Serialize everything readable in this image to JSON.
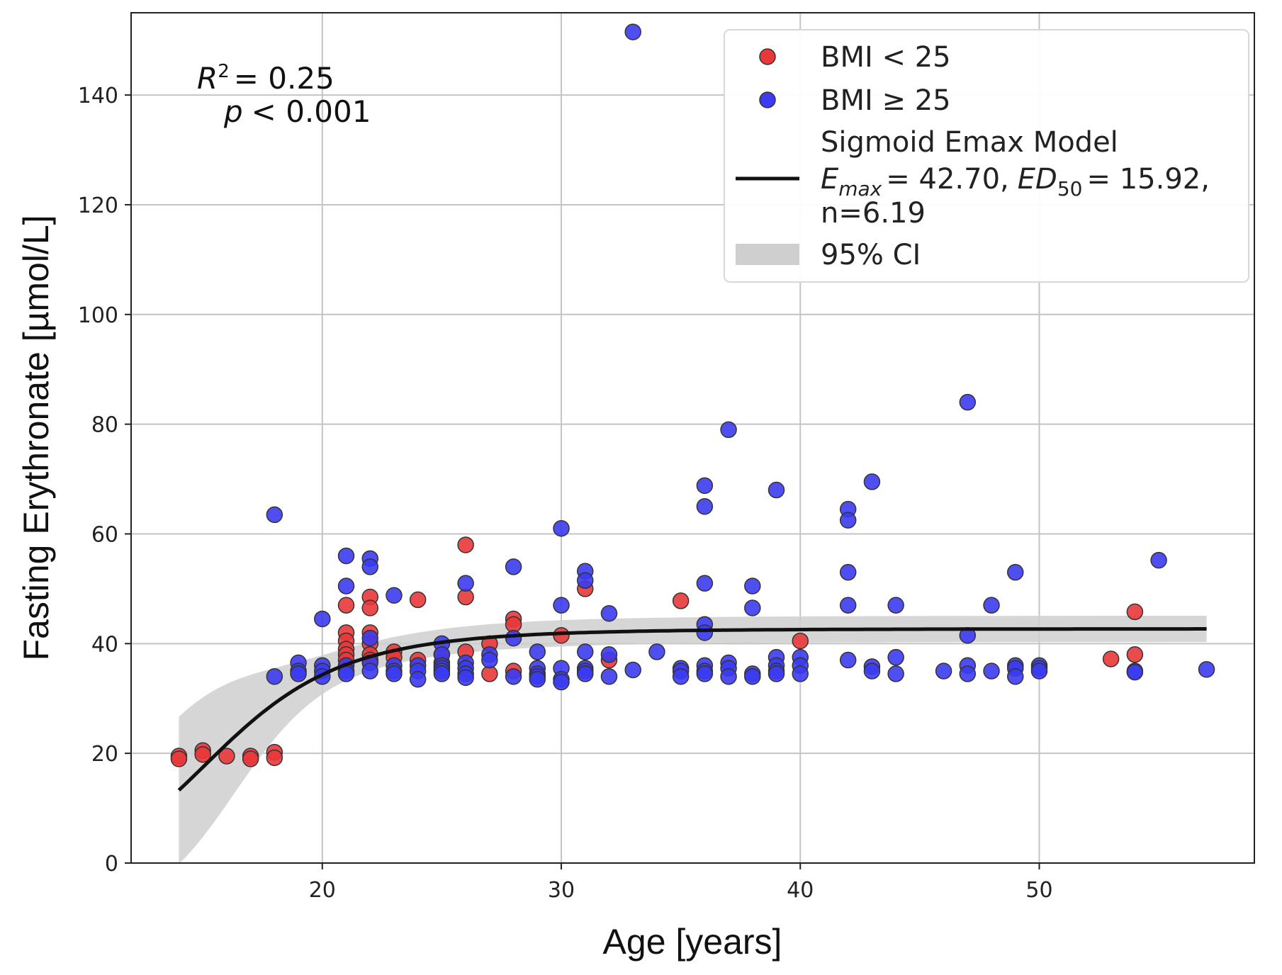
{
  "chart_data": {
    "type": "scatter",
    "xlabel": "Age [years]",
    "ylabel": "Fasting Erythronate [µmol/L]",
    "xlim": [
      12,
      59
    ],
    "ylim": [
      0,
      155
    ],
    "xticks": [
      20,
      30,
      40,
      50
    ],
    "yticks": [
      0,
      20,
      40,
      60,
      80,
      100,
      120,
      140
    ],
    "grid": true,
    "legend_position": "top-right",
    "stats": {
      "r2_symbol": "R",
      "r2_sup": "2",
      "r2_value": "= 0.25",
      "p_symbol": "p",
      "p_value": "< 0.001"
    },
    "legend": {
      "bmi_low": "BMI < 25",
      "bmi_high": "BMI ≥ 25",
      "model_title": "Sigmoid Emax Model",
      "emax_symbol": "E",
      "emax_sub": "max",
      "emax_value": "= 42.70,",
      "ed50_symbol": "ED",
      "ed50_sub": "50",
      "ed50_value": "= 15.92,",
      "n_value": "n=6.19",
      "ci": "95% CI"
    },
    "colors": {
      "bmi_low": "#e8383a",
      "bmi_high": "#3b3bf0",
      "model": "#111111",
      "ci": "#cfcfcf"
    },
    "model": {
      "emax": 42.7,
      "ed50": 15.92,
      "n": 6.19,
      "x_range": [
        14,
        57
      ]
    },
    "series": [
      {
        "name": "BMI < 25",
        "color": "#e8383a",
        "points": [
          [
            14,
            19.5
          ],
          [
            14,
            19
          ],
          [
            15,
            20.5
          ],
          [
            15,
            19.8
          ],
          [
            16,
            19.5
          ],
          [
            17,
            19.5
          ],
          [
            17,
            19
          ],
          [
            18,
            20.2
          ],
          [
            18,
            19.2
          ],
          [
            21,
            47
          ],
          [
            21,
            42
          ],
          [
            21,
            40.5
          ],
          [
            21,
            39
          ],
          [
            21,
            38
          ],
          [
            21,
            37
          ],
          [
            22,
            48.5
          ],
          [
            22,
            46.5
          ],
          [
            22,
            42
          ],
          [
            22,
            40
          ],
          [
            22,
            38
          ],
          [
            22,
            37
          ],
          [
            23,
            38.5
          ],
          [
            23,
            37.5
          ],
          [
            24,
            48
          ],
          [
            24,
            37
          ],
          [
            25,
            38
          ],
          [
            25,
            36.5
          ],
          [
            26,
            58
          ],
          [
            26,
            48.5
          ],
          [
            26,
            38.5
          ],
          [
            27,
            40
          ],
          [
            27,
            34.5
          ],
          [
            28,
            44.5
          ],
          [
            28,
            43.5
          ],
          [
            28,
            35
          ],
          [
            30,
            41.5
          ],
          [
            31,
            50
          ],
          [
            31,
            35
          ],
          [
            32,
            37
          ],
          [
            35,
            47.8
          ],
          [
            40,
            40.5
          ],
          [
            53,
            37.2
          ],
          [
            54,
            45.8
          ],
          [
            54,
            38
          ]
        ]
      },
      {
        "name": "BMI ≥ 25",
        "color": "#3b3bf0",
        "points": [
          [
            18,
            63.5
          ],
          [
            18,
            34
          ],
          [
            19,
            36.5
          ],
          [
            19,
            35
          ],
          [
            19,
            34.5
          ],
          [
            20,
            44.5
          ],
          [
            20,
            36
          ],
          [
            20,
            35
          ],
          [
            20,
            34
          ],
          [
            21,
            56
          ],
          [
            21,
            50.5
          ],
          [
            21,
            36
          ],
          [
            21,
            35
          ],
          [
            21,
            34.5
          ],
          [
            22,
            55.5
          ],
          [
            22,
            54
          ],
          [
            22,
            41
          ],
          [
            22,
            36.5
          ],
          [
            22,
            35
          ],
          [
            23,
            48.8
          ],
          [
            23,
            36
          ],
          [
            23,
            35
          ],
          [
            23,
            34.5
          ],
          [
            24,
            36
          ],
          [
            24,
            35
          ],
          [
            24,
            33.5
          ],
          [
            25,
            40
          ],
          [
            25,
            38
          ],
          [
            25,
            36
          ],
          [
            25,
            35.5
          ],
          [
            25,
            35
          ],
          [
            25,
            34.5
          ],
          [
            26,
            51
          ],
          [
            26,
            36.5
          ],
          [
            26,
            35.5
          ],
          [
            26,
            34.5
          ],
          [
            26,
            33.8
          ],
          [
            27,
            38
          ],
          [
            27,
            37
          ],
          [
            28,
            54
          ],
          [
            28,
            41
          ],
          [
            28,
            34
          ],
          [
            29,
            38.5
          ],
          [
            29,
            35.5
          ],
          [
            29,
            34.5
          ],
          [
            29,
            34
          ],
          [
            29,
            33.5
          ],
          [
            30,
            61
          ],
          [
            30,
            47
          ],
          [
            30,
            35.5
          ],
          [
            30,
            33.5
          ],
          [
            30,
            33
          ],
          [
            31,
            53.2
          ],
          [
            31,
            51.5
          ],
          [
            31,
            38.5
          ],
          [
            31,
            35.5
          ],
          [
            31,
            35
          ],
          [
            31,
            34.5
          ],
          [
            32,
            45.5
          ],
          [
            32,
            38
          ],
          [
            32,
            34
          ],
          [
            33,
            151.5
          ],
          [
            33,
            35.2
          ],
          [
            34,
            38.5
          ],
          [
            35,
            35.5
          ],
          [
            35,
            35
          ],
          [
            35,
            34
          ],
          [
            36,
            68.8
          ],
          [
            36,
            65
          ],
          [
            36,
            51
          ],
          [
            36,
            43.5
          ],
          [
            36,
            42
          ],
          [
            36,
            36
          ],
          [
            36,
            35
          ],
          [
            36,
            34.5
          ],
          [
            37,
            79
          ],
          [
            37,
            36.5
          ],
          [
            37,
            35.5
          ],
          [
            37,
            34
          ],
          [
            38,
            50.5
          ],
          [
            38,
            46.5
          ],
          [
            38,
            34.5
          ],
          [
            38,
            34
          ],
          [
            39,
            68
          ],
          [
            39,
            37.5
          ],
          [
            39,
            36
          ],
          [
            39,
            35
          ],
          [
            39,
            34.5
          ],
          [
            40,
            37.5
          ],
          [
            40,
            36
          ],
          [
            40,
            34.5
          ],
          [
            42,
            64.5
          ],
          [
            42,
            62.5
          ],
          [
            42,
            53
          ],
          [
            42,
            47
          ],
          [
            42,
            37
          ],
          [
            43,
            69.5
          ],
          [
            43,
            35.8
          ],
          [
            43,
            35
          ],
          [
            44,
            47
          ],
          [
            44,
            37.5
          ],
          [
            44,
            34.5
          ],
          [
            46,
            35
          ],
          [
            47,
            84
          ],
          [
            47,
            41.5
          ],
          [
            47,
            36
          ],
          [
            47,
            34.5
          ],
          [
            48,
            47
          ],
          [
            48,
            35
          ],
          [
            49,
            53
          ],
          [
            49,
            36
          ],
          [
            49,
            35.5
          ],
          [
            49,
            34
          ],
          [
            50,
            36
          ],
          [
            50,
            35.5
          ],
          [
            50,
            35
          ],
          [
            54,
            35
          ],
          [
            54,
            34.8
          ],
          [
            55,
            55.2
          ],
          [
            57,
            35.3
          ]
        ]
      }
    ]
  }
}
